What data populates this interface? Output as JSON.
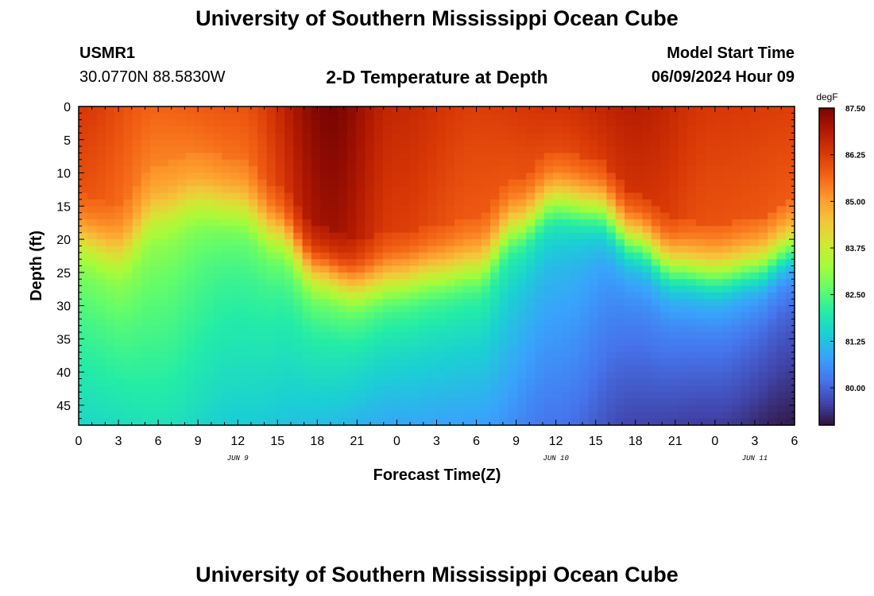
{
  "header": {
    "title": "University of Southern Mississippi Ocean Cube",
    "station_id": "USMR1",
    "coordinates": "30.0770N  88.5830W",
    "plot_title": "2-D Temperature at Depth",
    "model_start_label": "Model Start Time",
    "model_start_value": "06/09/2024 Hour 09"
  },
  "footer": {
    "title": "University of Southern Mississippi Ocean Cube"
  },
  "colors": {
    "scale": [
      "#30123b",
      "#4145ab",
      "#4675ed",
      "#39a2fc",
      "#1bcfd4",
      "#24eca6",
      "#61fc6c",
      "#a4fc3b",
      "#d1e834",
      "#f3c63a",
      "#fe9b2d",
      "#f36315",
      "#d93806",
      "#b11901",
      "#7a0403"
    ]
  },
  "chart_data": {
    "type": "heatmap",
    "title": "2-D Temperature at Depth",
    "xlabel": "Forecast Time(Z)",
    "ylabel": "Depth (ft)",
    "x_hours": [
      0,
      3,
      6,
      9,
      12,
      15,
      18,
      21,
      24,
      27,
      30,
      33,
      36,
      39,
      42,
      45,
      48,
      51,
      54
    ],
    "x_tick_labels": [
      "0",
      "3",
      "6",
      "9",
      "12",
      "15",
      "18",
      "21",
      "0",
      "3",
      "6",
      "9",
      "12",
      "15",
      "18",
      "21",
      "0",
      "3",
      "6"
    ],
    "date_labels": [
      {
        "hour": 12,
        "label": "JUN 9"
      },
      {
        "hour": 36,
        "label": "JUN 10"
      },
      {
        "hour": 51,
        "label": "JUN 11"
      }
    ],
    "y_ticks": [
      0,
      5,
      10,
      15,
      20,
      25,
      30,
      35,
      40,
      45
    ],
    "ylim": [
      0,
      48
    ],
    "xlim": [
      0,
      54
    ],
    "colorbar": {
      "unit": "degF",
      "ticks": [
        "80.00",
        "81.25",
        "82.50",
        "83.75",
        "85.00",
        "86.25",
        "87.50"
      ],
      "min": 79.0,
      "max": 87.5
    },
    "thermocline_depth_ft_by_hour": [
      {
        "hour": 0,
        "depth": 20
      },
      {
        "hour": 3,
        "depth": 22
      },
      {
        "hour": 6,
        "depth": 16
      },
      {
        "hour": 9,
        "depth": 14
      },
      {
        "hour": 12,
        "depth": 15
      },
      {
        "hour": 15,
        "depth": 19
      },
      {
        "hour": 18,
        "depth": 25
      },
      {
        "hour": 21,
        "depth": 27
      },
      {
        "hour": 24,
        "depth": 26
      },
      {
        "hour": 27,
        "depth": 25
      },
      {
        "hour": 30,
        "depth": 24
      },
      {
        "hour": 33,
        "depth": 18
      },
      {
        "hour": 36,
        "depth": 14
      },
      {
        "hour": 39,
        "depth": 15
      },
      {
        "hour": 42,
        "depth": 20
      },
      {
        "hour": 45,
        "depth": 24
      },
      {
        "hour": 48,
        "depth": 25
      },
      {
        "hour": 51,
        "depth": 24
      },
      {
        "hour": 54,
        "depth": 21
      }
    ],
    "surface_temp_degF_by_hour": [
      {
        "hour": 0,
        "value": 86.3
      },
      {
        "hour": 6,
        "value": 85.7
      },
      {
        "hour": 12,
        "value": 85.9
      },
      {
        "hour": 19,
        "value": 87.5
      },
      {
        "hour": 24,
        "value": 86.6
      },
      {
        "hour": 30,
        "value": 86.2
      },
      {
        "hour": 36,
        "value": 86.4
      },
      {
        "hour": 42,
        "value": 86.8
      },
      {
        "hour": 48,
        "value": 86.3
      },
      {
        "hour": 54,
        "value": 86.2
      }
    ],
    "bottom_temp_degF_by_hour": [
      {
        "hour": 0,
        "value": 81.6
      },
      {
        "hour": 6,
        "value": 81.8
      },
      {
        "hour": 12,
        "value": 81.4
      },
      {
        "hour": 18,
        "value": 81.2
      },
      {
        "hour": 24,
        "value": 80.9
      },
      {
        "hour": 30,
        "value": 80.8
      },
      {
        "hour": 36,
        "value": 80.2
      },
      {
        "hour": 42,
        "value": 79.6
      },
      {
        "hour": 48,
        "value": 79.5
      },
      {
        "hour": 54,
        "value": 79.1
      }
    ]
  }
}
